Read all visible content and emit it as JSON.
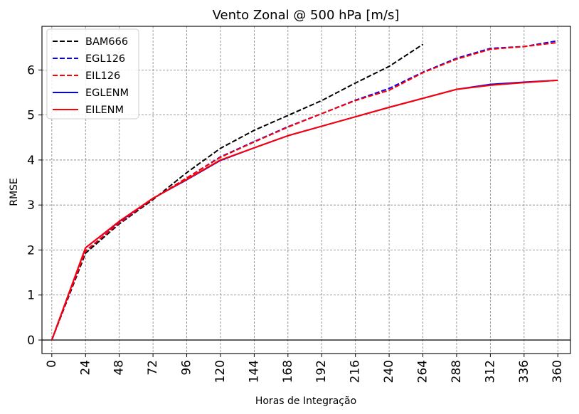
{
  "chart_data": {
    "type": "line",
    "title": "Vento Zonal @ 500 hPa [m/s]",
    "xlabel": "Horas de Integração",
    "ylabel": "RMSE",
    "xlim": [
      -7,
      369
    ],
    "ylim": [
      -0.3,
      6.97
    ],
    "grid": true,
    "legend_position": "top-left",
    "x_ticks": [
      0,
      24,
      48,
      72,
      96,
      120,
      144,
      168,
      192,
      216,
      240,
      264,
      288,
      312,
      336,
      360
    ],
    "y_ticks": [
      0,
      1,
      2,
      3,
      4,
      5,
      6
    ],
    "series": [
      {
        "name": "BAM666",
        "color": "#000000",
        "style": "dashed",
        "x": [
          0,
          24,
          48,
          72,
          96,
          120,
          144,
          168,
          192,
          216,
          240,
          264
        ],
        "y": [
          0.0,
          1.93,
          2.58,
          3.12,
          3.72,
          4.26,
          4.66,
          4.99,
          5.32,
          5.71,
          6.08,
          6.57
        ]
      },
      {
        "name": "EGL126",
        "color": "#0000ff",
        "style": "dashed",
        "x": [
          0,
          24,
          48,
          72,
          96,
          120,
          144,
          168,
          192,
          216,
          240,
          264,
          288,
          312,
          336,
          360
        ],
        "y": [
          0.0,
          1.98,
          2.6,
          3.14,
          3.6,
          4.07,
          4.41,
          4.74,
          5.03,
          5.33,
          5.59,
          5.95,
          6.26,
          6.48,
          6.52,
          6.65
        ]
      },
      {
        "name": "EIL126",
        "color": "#ff0000",
        "style": "dashed",
        "x": [
          0,
          24,
          48,
          72,
          96,
          120,
          144,
          168,
          192,
          216,
          240,
          264,
          288,
          312,
          336,
          360
        ],
        "y": [
          0.0,
          1.98,
          2.6,
          3.14,
          3.6,
          4.06,
          4.4,
          4.73,
          5.03,
          5.32,
          5.55,
          5.94,
          6.24,
          6.46,
          6.52,
          6.61
        ]
      },
      {
        "name": "EGLENM",
        "color": "#0000ff",
        "style": "solid",
        "x": [
          0,
          24,
          48,
          72,
          96,
          120,
          144,
          168,
          192,
          216,
          240,
          264,
          288,
          312,
          336,
          360
        ],
        "y": [
          0.0,
          2.05,
          2.63,
          3.15,
          3.56,
          3.99,
          4.27,
          4.54,
          4.75,
          4.96,
          5.17,
          5.37,
          5.57,
          5.68,
          5.73,
          5.77
        ]
      },
      {
        "name": "EILENM",
        "color": "#ff0000",
        "style": "solid",
        "x": [
          0,
          24,
          48,
          72,
          96,
          120,
          144,
          168,
          192,
          216,
          240,
          264,
          288,
          312,
          336,
          360
        ],
        "y": [
          0.0,
          2.05,
          2.64,
          3.15,
          3.57,
          4.0,
          4.27,
          4.54,
          4.75,
          4.96,
          5.17,
          5.37,
          5.57,
          5.66,
          5.72,
          5.77
        ]
      }
    ]
  }
}
